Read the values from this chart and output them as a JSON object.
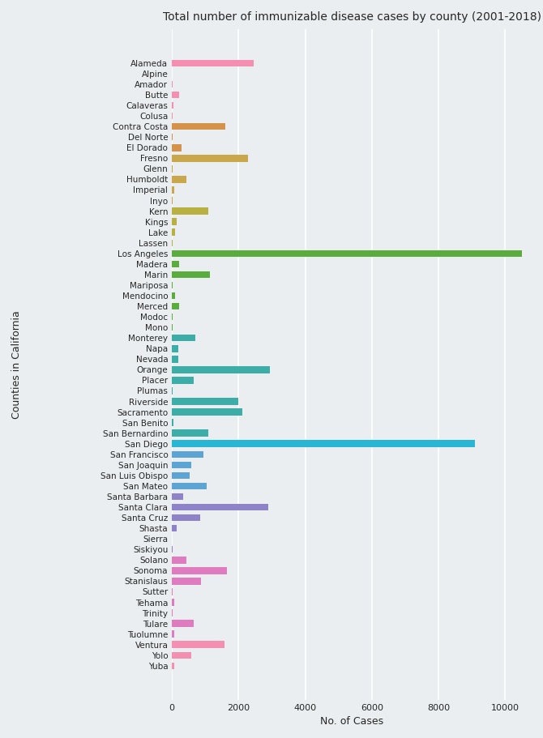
{
  "title": "Total number of immunizable disease cases by county (2001-2018)",
  "xlabel": "No. of Cases",
  "ylabel": "Counties in California",
  "counties": [
    "Alameda",
    "Alpine",
    "Amador",
    "Butte",
    "Calaveras",
    "Colusa",
    "Contra Costa",
    "Del Norte",
    "El Dorado",
    "Fresno",
    "Glenn",
    "Humboldt",
    "Imperial",
    "Inyo",
    "Kern",
    "Kings",
    "Lake",
    "Lassen",
    "Los Angeles",
    "Madera",
    "Marin",
    "Mariposa",
    "Mendocino",
    "Merced",
    "Modoc",
    "Mono",
    "Monterey",
    "Napa",
    "Nevada",
    "Orange",
    "Placer",
    "Plumas",
    "Riverside",
    "Sacramento",
    "San Benito",
    "San Bernardino",
    "San Diego",
    "San Francisco",
    "San Joaquin",
    "San Luis Obispo",
    "San Mateo",
    "Santa Barbara",
    "Santa Clara",
    "Santa Cruz",
    "Shasta",
    "Sierra",
    "Siskiyou",
    "Solano",
    "Sonoma",
    "Stanislaus",
    "Sutter",
    "Tehama",
    "Trinity",
    "Tulare",
    "Tuolumne",
    "Ventura",
    "Yolo",
    "Yuba"
  ],
  "values": [
    2450,
    0,
    30,
    220,
    55,
    8,
    1600,
    8,
    290,
    2280,
    8,
    430,
    65,
    28,
    1100,
    135,
    88,
    8,
    10500,
    210,
    1130,
    8,
    95,
    210,
    8,
    18,
    700,
    195,
    195,
    2950,
    660,
    8,
    1980,
    2120,
    45,
    1100,
    9100,
    940,
    570,
    520,
    1040,
    340,
    2880,
    840,
    130,
    5,
    18,
    440,
    1640,
    880,
    18,
    75,
    8,
    650,
    75,
    1580,
    580,
    75
  ],
  "colors": [
    "#f48fb1",
    "#f5ccd9",
    "#f48fb1",
    "#f48fb1",
    "#f48fb1",
    "#f48fb1",
    "#d4924a",
    "#d4924a",
    "#d4924a",
    "#c9a84c",
    "#c9a84c",
    "#c9a84c",
    "#c9a84c",
    "#c9a84c",
    "#b8b040",
    "#b8b040",
    "#b8b040",
    "#b8b040",
    "#5aad3c",
    "#5aad3c",
    "#5aad3c",
    "#5aad3c",
    "#5aad3c",
    "#5aad3c",
    "#5aad3c",
    "#5aad3c",
    "#3dada8",
    "#3dada8",
    "#3dada8",
    "#3dada8",
    "#3dada8",
    "#3dada8",
    "#3dada8",
    "#3dada8",
    "#3dada8",
    "#3dada8",
    "#29b5d4",
    "#5ba4d4",
    "#5ba4d4",
    "#5ba4d4",
    "#5ba4d4",
    "#8e82c8",
    "#8e82c8",
    "#8e82c8",
    "#8e82c8",
    "#8e82c8",
    "#8e82c8",
    "#df7bbf",
    "#df7bbf",
    "#df7bbf",
    "#df7bbf",
    "#df7bbf",
    "#df7bbf",
    "#df7bbf",
    "#df7bbf",
    "#f48fb1",
    "#f48fb1",
    "#f48fb1"
  ],
  "background_color": "#eaeef1",
  "xlim": [
    0,
    10800
  ],
  "xticks": [
    0,
    2000,
    4000,
    6000,
    8000,
    10000
  ],
  "figsize": [
    6.7,
    9.11
  ],
  "dpi": 100
}
